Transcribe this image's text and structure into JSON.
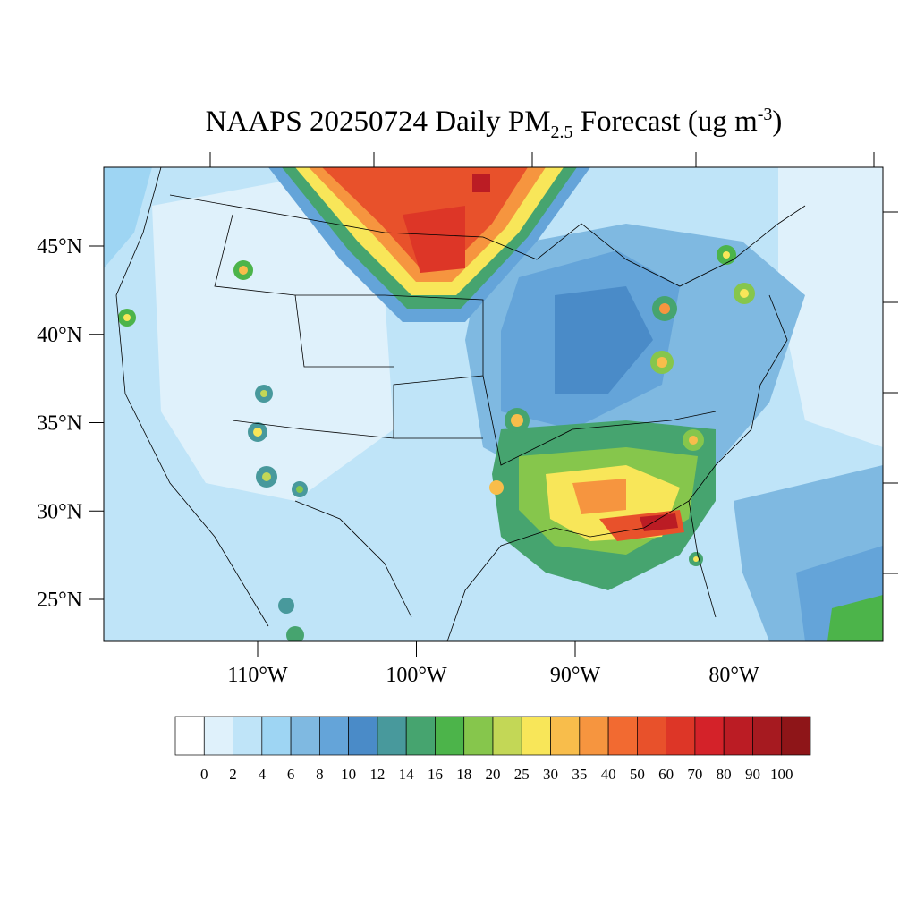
{
  "title": {
    "main": "NAAPS 20250724 Daily PM",
    "sub": "2.5",
    "rest": " Forecast (ug m",
    "sup": "-3",
    "end": ")"
  },
  "latitudes": [
    {
      "value": 45,
      "label": "45°N"
    },
    {
      "value": 40,
      "label": "40°N"
    },
    {
      "value": 35,
      "label": "35°N"
    },
    {
      "value": 30,
      "label": "30°N"
    },
    {
      "value": 25,
      "label": "25°N"
    }
  ],
  "longitudes": [
    {
      "value": -110,
      "label": "110°W"
    },
    {
      "value": -100,
      "label": "100°W"
    },
    {
      "value": -90,
      "label": "90°W"
    },
    {
      "value": -80,
      "label": "80°W"
    }
  ],
  "colorbar": {
    "levels": [
      0,
      2,
      4,
      6,
      8,
      10,
      12,
      14,
      16,
      18,
      20,
      25,
      30,
      35,
      40,
      50,
      60,
      70,
      80,
      90,
      100
    ],
    "colors": [
      "#ffffff",
      "#dff1fb",
      "#bfe4f8",
      "#9ed5f3",
      "#7fb9e1",
      "#64a4d9",
      "#4a8bc8",
      "#48999c",
      "#46a46f",
      "#4cb44a",
      "#86c64c",
      "#c3d756",
      "#f8e659",
      "#f8bd4b",
      "#f6953f",
      "#f26a31",
      "#e8512b",
      "#dd3627",
      "#d42229",
      "#bb1c24",
      "#a61a20",
      "#8e1518"
    ]
  }
}
